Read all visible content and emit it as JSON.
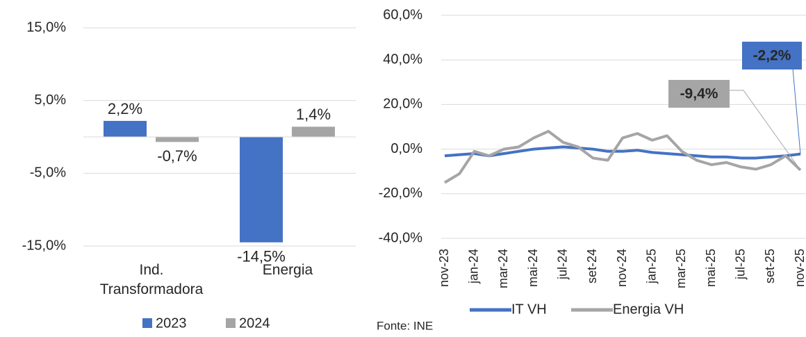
{
  "chart_data": [
    {
      "type": "bar",
      "categories": [
        "Ind. Transformadora",
        "Energia"
      ],
      "series": [
        {
          "name": "2023",
          "color": "#4472c4",
          "values": [
            2.2,
            -14.5
          ],
          "value_labels": [
            "2,2%",
            "-14,5%"
          ]
        },
        {
          "name": "2024",
          "color": "#a5a5a5",
          "values": [
            -0.7,
            1.4
          ],
          "value_labels": [
            "-0,7%",
            "1,4%"
          ]
        }
      ],
      "ylim": [
        -15,
        15
      ],
      "yticks": [
        {
          "value": -15,
          "label": "-15,0%"
        },
        {
          "value": -5,
          "label": "-5,0%"
        },
        {
          "value": 5,
          "label": "5,0%"
        },
        {
          "value": 15,
          "label": "15,0%"
        }
      ],
      "grid": true,
      "legend": "bottom"
    },
    {
      "type": "line",
      "categories": [
        "nov-23",
        null,
        "jan-24",
        null,
        "mar-24",
        null,
        "mai-24",
        null,
        "jul-24",
        null,
        "set-24",
        null,
        "nov-24",
        null,
        "jan-25",
        null,
        "mar-25",
        null,
        "mai-25",
        null,
        "jul-25",
        null,
        "set-25",
        null,
        "nov-25"
      ],
      "series": [
        {
          "name": "IT VH",
          "color": "#4472c4",
          "values": [
            -3,
            -2.5,
            -2,
            -3,
            -2,
            -1,
            0,
            0.5,
            1,
            0.5,
            0,
            -1,
            -1,
            -0.5,
            -1.5,
            -2,
            -2.5,
            -3,
            -3.5,
            -3.5,
            -4,
            -4,
            -3.5,
            -3,
            -2.2
          ],
          "value_labels": [
            null,
            null,
            null,
            null,
            null,
            null,
            null,
            null,
            null,
            null,
            null,
            null,
            null,
            null,
            null,
            null,
            null,
            null,
            null,
            null,
            null,
            null,
            null,
            null,
            "-2,2%"
          ]
        },
        {
          "name": "Energia VH",
          "color": "#a5a5a5",
          "values": [
            -15,
            -11,
            -1,
            -3,
            0,
            1,
            5,
            8,
            3,
            1,
            -4,
            -5,
            5,
            7,
            4,
            6,
            -1,
            -5,
            -7,
            -6,
            -8,
            -9,
            -7,
            -3,
            -9.4
          ],
          "value_labels": [
            null,
            null,
            null,
            null,
            null,
            null,
            null,
            null,
            null,
            null,
            null,
            null,
            null,
            null,
            null,
            null,
            null,
            null,
            null,
            null,
            null,
            null,
            null,
            null,
            "-9,4%"
          ]
        }
      ],
      "ylim": [
        -40,
        60
      ],
      "yticks": [
        {
          "value": -40,
          "label": "-40,0%"
        },
        {
          "value": -20,
          "label": "-20,0%"
        },
        {
          "value": 0,
          "label": "0,0%"
        },
        {
          "value": 20,
          "label": "20,0%"
        },
        {
          "value": 40,
          "label": "40,0%"
        },
        {
          "value": 60,
          "label": "60,0%"
        }
      ],
      "grid": true,
      "legend": "bottom",
      "source": "Fonte: INE"
    }
  ]
}
